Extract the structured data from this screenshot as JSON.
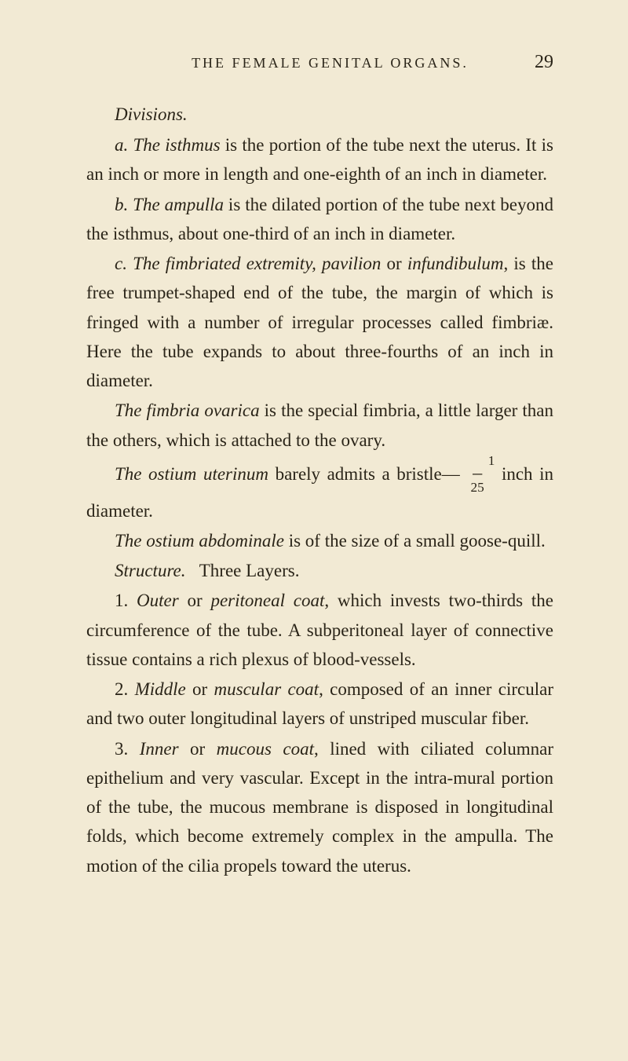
{
  "header": {
    "running_title": "THE FEMALE GENITAL ORGANS.",
    "page_number": "29"
  },
  "divisions": {
    "title": "Divisions.",
    "item_a": "a. The isthmus is the portion of the tube next the uterus. It is an inch or more in length and one-eighth of an inch in diameter.",
    "item_b": "b. The ampulla is the dilated portion of the tube next beyond the isthmus, about one-third of an inch in diameter.",
    "item_c": "c. The fimbriated extremity, pavilion or infundibulum, is the free trumpet-shaped end of the tube, the margin of which is fringed with a number of irregular processes called fimbriæ. Here the tube expands to about three-fourths of an inch in diameter.",
    "fimbria_ovarica": "The fimbria ovarica is the special fimbria, a little larger than the others, which is attached to the ovary.",
    "ostium_uterinum": "The ostium uterinum barely admits a bristle—1⁄25 inch in diameter.",
    "ostium_abdominale": "The ostium abdominale is of the size of a small goose-quill."
  },
  "structure": {
    "title": "Structure.",
    "intro": "Three Layers.",
    "layer1": "1. Outer or peritoneal coat, which invests two-thirds the circumference of the tube. A subperitoneal layer of connective tissue contains a rich plexus of blood-vessels.",
    "layer2": "2. Middle or muscular coat, composed of an inner circular and two outer longitudinal layers of unstriped muscular fiber.",
    "layer3": "3. Inner or mucous coat, lined with ciliated columnar epithelium and very vascular. Except in the intra-mural portion of the tube, the mucous membrane is disposed in longitudinal folds, which become extremely complex in the ampulla. The motion of the cilia propels toward the uterus."
  }
}
